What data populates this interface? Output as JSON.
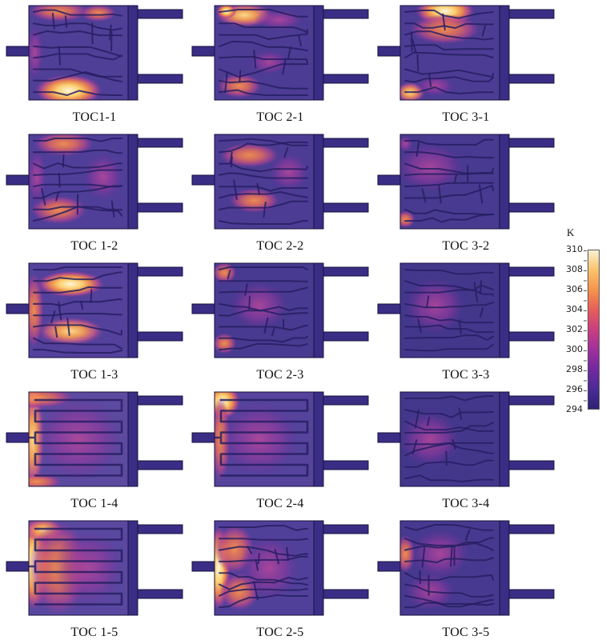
{
  "chart_data": {
    "type": "heatmap",
    "title": "",
    "unit": "K",
    "layout": {
      "rows": 5,
      "cols": 3,
      "legend_position": "right"
    },
    "colorbar": {
      "label": "K",
      "ticks": [
        310,
        308,
        306,
        304,
        302,
        300,
        298,
        296,
        294
      ],
      "range": [
        294,
        310
      ],
      "gradient": [
        "#f9f0d2",
        "#fbc26b",
        "#f5934c",
        "#e75d5a",
        "#c93f80",
        "#a0309b",
        "#73299f",
        "#4b2b96",
        "#2e2173"
      ]
    },
    "cold_color": "#3a2d85",
    "outline_color": "#17123b",
    "channel_color": "#271f63",
    "hot_levels": {
      "white": [
        {
          "o": 0,
          "c": "#fdf6da",
          "a": 1
        },
        {
          "o": 0.35,
          "c": "#fbcf6f",
          "a": 1
        },
        {
          "o": 0.6,
          "c": "#f08a4b",
          "a": 0.95
        },
        {
          "o": 0.8,
          "c": "#c34f8b",
          "a": 0.8
        },
        {
          "o": 1,
          "c": "#8a3a99",
          "a": 0
        }
      ],
      "yellow": [
        {
          "o": 0,
          "c": "#fbd98b",
          "a": 1
        },
        {
          "o": 0.4,
          "c": "#f49d52",
          "a": 0.95
        },
        {
          "o": 0.7,
          "c": "#d15f84",
          "a": 0.8
        },
        {
          "o": 1,
          "c": "#8a3a99",
          "a": 0
        }
      ],
      "orange": [
        {
          "o": 0,
          "c": "#f5914d",
          "a": 0.95
        },
        {
          "o": 0.45,
          "c": "#e06a5e",
          "a": 0.85
        },
        {
          "o": 0.75,
          "c": "#b04590",
          "a": 0.7
        },
        {
          "o": 1,
          "c": "#8a3a99",
          "a": 0
        }
      ],
      "magenta": [
        {
          "o": 0,
          "c": "#b8489a",
          "a": 0.85
        },
        {
          "o": 0.55,
          "c": "#94399e",
          "a": 0.6
        },
        {
          "o": 1,
          "c": "#6a3098",
          "a": 0
        }
      ]
    },
    "panels": [
      {
        "label": "TOC1-1",
        "pattern": "maze",
        "seed": 11,
        "base": "#4f3f97",
        "hot_zones": [
          {
            "x": 0.4,
            "y": 0.9,
            "rx": 0.34,
            "ry": 0.17,
            "level": "white"
          },
          {
            "x": 0.3,
            "y": 0.06,
            "rx": 0.3,
            "ry": 0.11,
            "level": "orange"
          },
          {
            "x": 0.7,
            "y": 0.08,
            "rx": 0.18,
            "ry": 0.09,
            "level": "orange"
          },
          {
            "x": 0.06,
            "y": 0.5,
            "rx": 0.09,
            "ry": 0.3,
            "level": "magenta"
          }
        ]
      },
      {
        "label": "TOC 2-1",
        "pattern": "maze",
        "seed": 21,
        "base": "#4c3c94",
        "hot_zones": [
          {
            "x": 0.3,
            "y": 0.1,
            "rx": 0.3,
            "ry": 0.13,
            "level": "yellow"
          },
          {
            "x": 0.12,
            "y": 0.06,
            "rx": 0.1,
            "ry": 0.08,
            "level": "white"
          },
          {
            "x": 0.65,
            "y": 0.15,
            "rx": 0.25,
            "ry": 0.11,
            "level": "magenta"
          },
          {
            "x": 0.25,
            "y": 0.85,
            "rx": 0.22,
            "ry": 0.13,
            "level": "orange"
          },
          {
            "x": 0.55,
            "y": 0.6,
            "rx": 0.2,
            "ry": 0.13,
            "level": "magenta"
          }
        ]
      },
      {
        "label": "TOC 3-1",
        "pattern": "maze",
        "seed": 31,
        "base": "#4c3c94",
        "hot_zones": [
          {
            "x": 0.45,
            "y": 0.06,
            "rx": 0.3,
            "ry": 0.15,
            "level": "white"
          },
          {
            "x": 0.45,
            "y": 0.25,
            "rx": 0.35,
            "ry": 0.16,
            "level": "orange"
          },
          {
            "x": 0.1,
            "y": 0.92,
            "rx": 0.15,
            "ry": 0.11,
            "level": "yellow"
          },
          {
            "x": 0.35,
            "y": 0.85,
            "rx": 0.2,
            "ry": 0.11,
            "level": "magenta"
          }
        ]
      },
      {
        "label": "TOC 1-2",
        "pattern": "maze",
        "seed": 12,
        "base": "#503f99",
        "hot_zones": [
          {
            "x": 0.35,
            "y": 0.1,
            "rx": 0.3,
            "ry": 0.13,
            "level": "orange"
          },
          {
            "x": 0.3,
            "y": 0.8,
            "rx": 0.28,
            "ry": 0.15,
            "level": "orange"
          },
          {
            "x": 0.75,
            "y": 0.45,
            "rx": 0.2,
            "ry": 0.25,
            "level": "magenta"
          },
          {
            "x": 0.08,
            "y": 0.45,
            "rx": 0.1,
            "ry": 0.3,
            "level": "magenta"
          }
        ]
      },
      {
        "label": "TOC 2-2",
        "pattern": "maze",
        "seed": 22,
        "base": "#4c3c94",
        "hot_zones": [
          {
            "x": 0.35,
            "y": 0.22,
            "rx": 0.3,
            "ry": 0.13,
            "level": "orange"
          },
          {
            "x": 0.4,
            "y": 0.7,
            "rx": 0.25,
            "ry": 0.13,
            "level": "orange"
          },
          {
            "x": 0.75,
            "y": 0.4,
            "rx": 0.2,
            "ry": 0.2,
            "level": "magenta"
          }
        ]
      },
      {
        "label": "TOC 3-2",
        "pattern": "maze",
        "seed": 32,
        "base": "#473a90",
        "hot_zones": [
          {
            "x": 0.3,
            "y": 0.35,
            "rx": 0.35,
            "ry": 0.26,
            "level": "magenta"
          },
          {
            "x": 0.05,
            "y": 0.9,
            "rx": 0.1,
            "ry": 0.09,
            "level": "orange"
          },
          {
            "x": 0.05,
            "y": 0.1,
            "rx": 0.08,
            "ry": 0.09,
            "level": "magenta"
          }
        ]
      },
      {
        "label": "TOC 1-3",
        "pattern": "maze",
        "seed": 13,
        "base": "#53419b",
        "hot_zones": [
          {
            "x": 0.42,
            "y": 0.22,
            "rx": 0.34,
            "ry": 0.14,
            "level": "white"
          },
          {
            "x": 0.42,
            "y": 0.72,
            "rx": 0.34,
            "ry": 0.15,
            "level": "yellow"
          },
          {
            "x": 0.05,
            "y": 0.5,
            "rx": 0.1,
            "ry": 0.4,
            "level": "orange"
          }
        ]
      },
      {
        "label": "TOC 2-3",
        "pattern": "maze",
        "seed": 23,
        "base": "#473a90",
        "hot_zones": [
          {
            "x": 0.1,
            "y": 0.1,
            "rx": 0.12,
            "ry": 0.11,
            "level": "orange"
          },
          {
            "x": 0.1,
            "y": 0.85,
            "rx": 0.12,
            "ry": 0.11,
            "level": "orange"
          },
          {
            "x": 0.45,
            "y": 0.45,
            "rx": 0.3,
            "ry": 0.26,
            "level": "magenta"
          }
        ]
      },
      {
        "label": "TOC 3-3",
        "pattern": "maze",
        "seed": 33,
        "base": "#43378c",
        "hot_zones": [
          {
            "x": 0.35,
            "y": 0.45,
            "rx": 0.3,
            "ry": 0.3,
            "level": "magenta"
          }
        ]
      },
      {
        "label": "TOC 1-4",
        "pattern": "serpentine",
        "seed": 14,
        "base": "#5c4aa0",
        "hot_zones": [
          {
            "x": 0.04,
            "y": 0.5,
            "rx": 0.12,
            "ry": 0.55,
            "level": "yellow"
          },
          {
            "x": 0.04,
            "y": 0.06,
            "rx": 0.1,
            "ry": 0.11,
            "level": "white"
          },
          {
            "x": 0.1,
            "y": 0.06,
            "rx": 0.35,
            "ry": 0.11,
            "level": "orange"
          },
          {
            "x": 0.08,
            "y": 0.95,
            "rx": 0.25,
            "ry": 0.09,
            "level": "orange"
          },
          {
            "x": 0.5,
            "y": 0.5,
            "rx": 0.45,
            "ry": 0.45,
            "level": "magenta"
          }
        ]
      },
      {
        "label": "TOC 2-4",
        "pattern": "serpentine",
        "seed": 24,
        "base": "#55439c",
        "hot_zones": [
          {
            "x": 0.08,
            "y": 0.1,
            "rx": 0.18,
            "ry": 0.19,
            "level": "white"
          },
          {
            "x": 0.06,
            "y": 0.5,
            "rx": 0.1,
            "ry": 0.45,
            "level": "orange"
          },
          {
            "x": 0.45,
            "y": 0.5,
            "rx": 0.4,
            "ry": 0.4,
            "level": "magenta"
          }
        ]
      },
      {
        "label": "TOC 3-4",
        "pattern": "maze",
        "seed": 34,
        "base": "#43378c",
        "hot_zones": [
          {
            "x": 0.3,
            "y": 0.5,
            "rx": 0.3,
            "ry": 0.3,
            "level": "magenta"
          }
        ]
      },
      {
        "label": "TOC 1-5",
        "pattern": "serpentine",
        "seed": 15,
        "base": "#5a48a0",
        "hot_zones": [
          {
            "x": 0.05,
            "y": 0.45,
            "rx": 0.16,
            "ry": 0.5,
            "level": "white"
          },
          {
            "x": 0.15,
            "y": 0.1,
            "rx": 0.2,
            "ry": 0.13,
            "level": "yellow"
          },
          {
            "x": 0.3,
            "y": 0.5,
            "rx": 0.3,
            "ry": 0.5,
            "level": "orange"
          },
          {
            "x": 0.6,
            "y": 0.5,
            "rx": 0.35,
            "ry": 0.4,
            "level": "magenta"
          }
        ]
      },
      {
        "label": "TOC 2-5",
        "pattern": "maze",
        "seed": 25,
        "base": "#51409a",
        "hot_zones": [
          {
            "x": 0.04,
            "y": 0.5,
            "rx": 0.12,
            "ry": 0.45,
            "level": "white"
          },
          {
            "x": 0.2,
            "y": 0.3,
            "rx": 0.2,
            "ry": 0.26,
            "level": "orange"
          },
          {
            "x": 0.25,
            "y": 0.75,
            "rx": 0.2,
            "ry": 0.2,
            "level": "orange"
          },
          {
            "x": 0.55,
            "y": 0.5,
            "rx": 0.3,
            "ry": 0.35,
            "level": "magenta"
          }
        ]
      },
      {
        "label": "TOC 3-5",
        "pattern": "maze",
        "seed": 35,
        "base": "#47398f",
        "hot_zones": [
          {
            "x": 0.05,
            "y": 0.35,
            "rx": 0.1,
            "ry": 0.2,
            "level": "orange"
          },
          {
            "x": 0.4,
            "y": 0.35,
            "rx": 0.3,
            "ry": 0.26,
            "level": "magenta"
          },
          {
            "x": 0.3,
            "y": 0.75,
            "rx": 0.25,
            "ry": 0.2,
            "level": "magenta"
          }
        ]
      }
    ]
  }
}
